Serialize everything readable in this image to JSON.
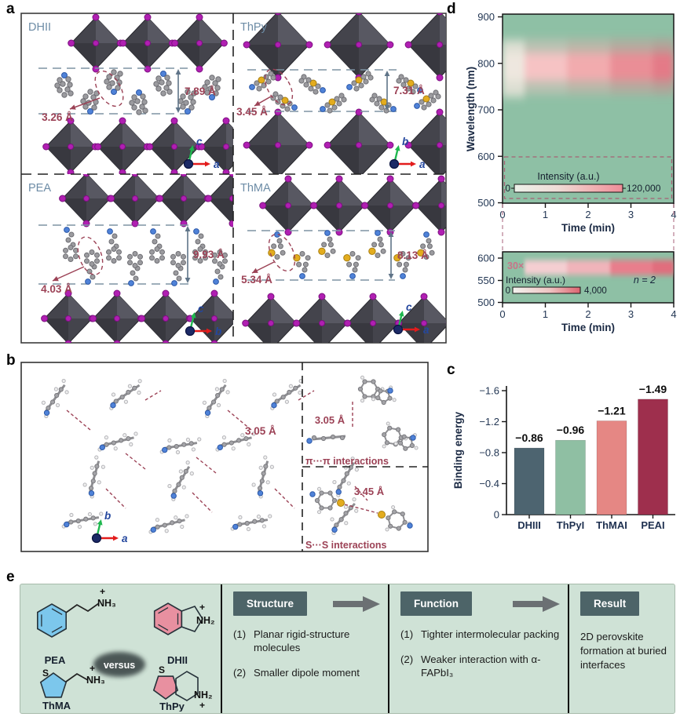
{
  "colors": {
    "heatmap_bg": "#8ec0a5",
    "annotation_maroon": "#9c4256",
    "layer_line": "#7e93a4",
    "measure_arrow": "#5f7488",
    "quadrant_label": "#6d8ca6",
    "axis_text": "#233754",
    "iodine": "#b01fb2",
    "octahedron": "#44444c",
    "nitrogen": "#4f82d8",
    "sulfur": "#e3ac1e",
    "carbon": "#9b9b9f",
    "bar_colors": [
      "#4d6470",
      "#8fbfa3",
      "#e58784",
      "#9e2f4d"
    ],
    "e_background": "#cfe2d6",
    "e_header_bg": "#4d6468",
    "mol_blue": "#7cc7ec",
    "mol_pink": "#e890a0",
    "arrow_gray": "#6b7073"
  },
  "panels": {
    "a": {
      "label": "a",
      "quadrants": [
        {
          "name": "DHII",
          "short_dist": "3.26 Å",
          "layer_dist": "7.89 Å",
          "axis_v": "c",
          "axis_h": "a"
        },
        {
          "name": "ThPy",
          "short_dist": "3.45 Å",
          "layer_dist": "7.31 Å",
          "axis_v": "b",
          "axis_h": "a"
        },
        {
          "name": "PEA",
          "short_dist": "4.03 Å",
          "layer_dist": "9.93 Å",
          "axis_v": "c",
          "axis_h": "b"
        },
        {
          "name": "ThMA",
          "short_dist": "5.34 Å",
          "layer_dist": "8.13 Å",
          "axis_v": "c",
          "axis_h": "a"
        }
      ]
    },
    "b": {
      "label": "b",
      "main_dist": "3.05 Å",
      "axis_v": "b",
      "axis_h": "a",
      "interactions": [
        {
          "dist": "3.05 Å",
          "caption": "π···π interactions"
        },
        {
          "dist": "3.45 Å",
          "caption": "S···S interactions"
        }
      ]
    },
    "c": {
      "label": "c",
      "ylabel": "Binding energy",
      "yticks": [
        "−1.6",
        "−1.2",
        "−0.8",
        "−0.4",
        "0"
      ],
      "categories": [
        "DHIII",
        "ThPyI",
        "ThMAI",
        "PEAI"
      ],
      "value_labels": [
        "−0.86",
        "−0.96",
        "−1.21",
        "−1.49"
      ]
    },
    "d": {
      "label": "d",
      "main": {
        "ylabel": "Wavelength (nm)",
        "xlabel": "Time (min)",
        "yticks": [
          "900",
          "800",
          "700",
          "600",
          "500"
        ],
        "xticks": [
          "0",
          "1",
          "2",
          "3",
          "4"
        ],
        "colorbar": {
          "title": "Intensity (a.u.)",
          "min": "0",
          "max": "120,000"
        }
      },
      "inset": {
        "magnification": "30×",
        "sample_label": "n = 2",
        "yticks": [
          "600",
          "550",
          "500"
        ],
        "xticks": [
          "0",
          "1",
          "2",
          "3",
          "4"
        ],
        "xlabel": "Time (min)",
        "colorbar": {
          "title": "Intensity (a.u.)",
          "min": "0",
          "max": "4,000"
        }
      }
    },
    "e": {
      "label": "e",
      "versus": "versus",
      "molecules": [
        {
          "name": "PEA",
          "amine": "NH₃",
          "charge": "+"
        },
        {
          "name": "DHII",
          "amine": "NH₂",
          "charge": "+"
        },
        {
          "name": "ThMA",
          "amine": "NH₃",
          "charge": "+",
          "hetero": "S"
        },
        {
          "name": "ThPy",
          "amine": "NH₂",
          "charge": "+",
          "hetero": "S"
        }
      ],
      "nums": [
        "(1)",
        "(2)"
      ],
      "sections": [
        {
          "heading": "Structure",
          "items": [
            "Planar rigid-structure molecules",
            "Smaller dipole moment"
          ]
        },
        {
          "heading": "Function",
          "items": [
            "Tighter intermolecular packing",
            "Weaker interaction with α-FAPbI₃"
          ]
        },
        {
          "heading": "Result",
          "text": "2D perovskite formation at buried interfaces"
        }
      ]
    }
  },
  "chart_data": [
    {
      "type": "heatmap",
      "panel": "d-main",
      "xlabel": "Time (min)",
      "ylabel": "Wavelength (nm)",
      "x_range": [
        0,
        4
      ],
      "y_range": [
        500,
        900
      ],
      "colorbar_label": "Intensity (a.u.)",
      "intensity_range": [
        0,
        120000
      ],
      "band_center_nm": 790,
      "band_intensity_vs_time": [
        {
          "t": 0.25,
          "rel": 0.15
        },
        {
          "t": 1,
          "rel": 0.45
        },
        {
          "t": 2,
          "rel": 0.6
        },
        {
          "t": 3,
          "rel": 0.85
        },
        {
          "t": 3.75,
          "rel": 1.0
        }
      ]
    },
    {
      "type": "heatmap",
      "panel": "d-inset",
      "magnification": "30×",
      "annotation": "n = 2",
      "xlabel": "Time (min)",
      "ylabel": "Wavelength (nm)",
      "x_range": [
        0,
        4
      ],
      "y_range": [
        500,
        600
      ],
      "colorbar_label": "Intensity (a.u.)",
      "intensity_range": [
        0,
        4000
      ],
      "band_center_nm": 575,
      "band_intensity_vs_time": [
        {
          "t": 1,
          "rel": 0.3
        },
        {
          "t": 2,
          "rel": 0.45
        },
        {
          "t": 3,
          "rel": 0.8
        },
        {
          "t": 3.75,
          "rel": 1.0
        }
      ]
    },
    {
      "type": "bar",
      "panel": "c",
      "categories": [
        "DHIII",
        "ThPyI",
        "ThMAI",
        "PEAI"
      ],
      "values": [
        -0.86,
        -0.96,
        -1.21,
        -1.49
      ],
      "ylabel": "Binding energy",
      "ylim": [
        0,
        -1.6
      ],
      "bar_colors": [
        "#4d6470",
        "#8fbfa3",
        "#e58784",
        "#9e2f4d"
      ]
    }
  ]
}
